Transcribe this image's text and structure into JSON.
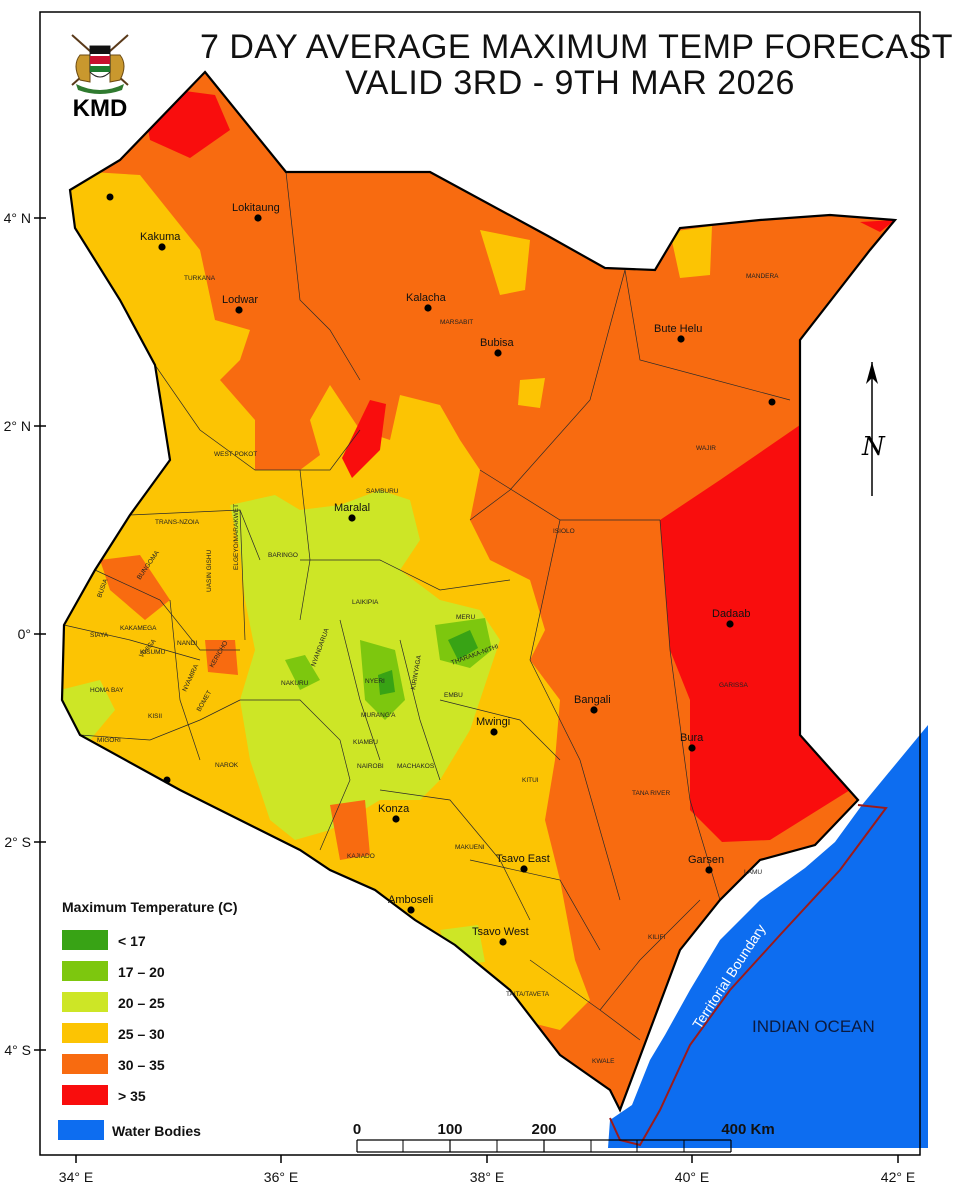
{
  "title": {
    "line1": "7 DAY AVERAGE MAXIMUM TEMP FORECAST",
    "line2": "VALID 3RD - 9TH MAR 2026"
  },
  "logo": {
    "text": "KMD",
    "icon": "kenya-coat-of-arms-icon"
  },
  "axes": {
    "lat_ticks": [
      "4° N",
      "2° N",
      "0°",
      "2° S",
      "4° S"
    ],
    "lon_ticks": [
      "34° E",
      "36° E",
      "38° E",
      "40° E",
      "42° E"
    ]
  },
  "legend": {
    "title": "Maximum Temperature (C)",
    "items": [
      {
        "label": "< 17",
        "color": "#38a315"
      },
      {
        "label": "17 – 20",
        "color": "#7dc70e"
      },
      {
        "label": "20 – 25",
        "color": "#cde626"
      },
      {
        "label": "25 – 30",
        "color": "#fcc403"
      },
      {
        "label": "30 – 35",
        "color": "#f86b10"
      },
      {
        "label": "> 35",
        "color": "#f90d0d"
      }
    ],
    "water": {
      "label": "Water Bodies",
      "color": "#0d6df0"
    }
  },
  "scale_bar": {
    "labels": [
      "0",
      "100",
      "200",
      "400 Km"
    ]
  },
  "north_arrow": {
    "label": "N"
  },
  "ocean_label": "INDIAN OCEAN",
  "boundary_label": "Territorial Boundary",
  "cities": [
    "Lokitaung",
    "Kakuma",
    "Lodwar",
    "Kalacha",
    "Bubisa",
    "Bute Helu",
    "Maralal",
    "Dadaab",
    "Bangali",
    "Mwingi",
    "Bura",
    "Konza",
    "Garsen",
    "Tsavo East",
    "Amboseli",
    "Tsavo West"
  ],
  "counties": [
    "TURKANA",
    "MARSABIT",
    "MANDERA",
    "WAJIR",
    "WEST POKOT",
    "SAMBURU",
    "TRANS-NZOIA",
    "ELGEYO/MARAKWET",
    "BARINGO",
    "UASIN GISHU",
    "BUNGOMA",
    "BUSIA",
    "KAKAMEGA",
    "NANDI",
    "VIHIGA",
    "SIAYA",
    "KISUMU",
    "KERICHO",
    "HOMA BAY",
    "NYAMIRA",
    "KISII",
    "BOMET",
    "MIGORI",
    "NAROK",
    "NAKURU",
    "NYANDARUA",
    "LAIKIPIA",
    "ISIOLO",
    "MERU",
    "THARAKA-NITHI",
    "NYERI",
    "KIRINYAGA",
    "EMBU",
    "MURANG'A",
    "KIAMBU",
    "NAIROBI",
    "MACHAKOS",
    "KITUI",
    "KAJIADO",
    "MAKUENI",
    "TAITA/TAVETA",
    "KWALE",
    "KILIFI",
    "TANA RIVER",
    "GARISSA",
    "LAMU"
  ]
}
